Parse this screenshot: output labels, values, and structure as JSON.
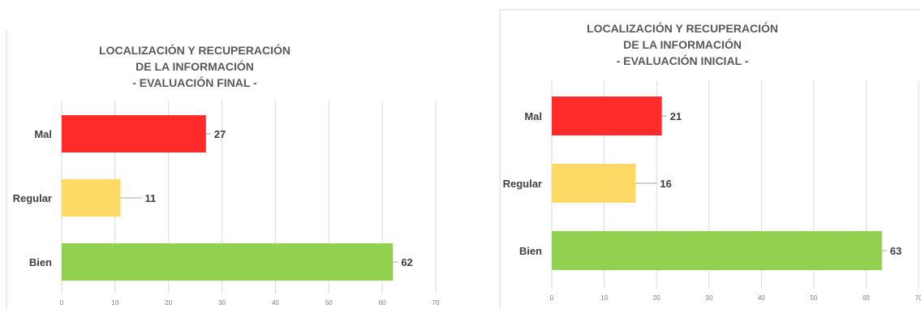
{
  "colors": {
    "mal": "#ff2b2b",
    "regular": "#ffd966",
    "bien": "#92d050"
  },
  "chart_data": [
    {
      "type": "bar",
      "orientation": "horizontal",
      "title": "LOCALIZACIÓN Y RECUPERACIÓN\nDE LA INFORMACIÓN\n- EVALUACIÓN FINAL -",
      "categories": [
        "Mal",
        "Regular",
        "Bien"
      ],
      "values": [
        27,
        11,
        62
      ],
      "xlim": [
        0,
        70
      ],
      "ticks": [
        0,
        10,
        20,
        30,
        40,
        50,
        60,
        70
      ],
      "grid": true,
      "data_labels": true
    },
    {
      "type": "bar",
      "orientation": "horizontal",
      "title": "LOCALIZACIÓN Y RECUPERACIÓN\nDE LA INFORMACIÓN\n- EVALUACIÓN INICIAL -",
      "categories": [
        "Mal",
        "Regular",
        "Bien"
      ],
      "values": [
        21,
        16,
        63
      ],
      "xlim": [
        0,
        70
      ],
      "ticks": [
        0,
        10,
        20,
        30,
        40,
        50,
        60,
        70
      ],
      "grid": true,
      "data_labels": true
    }
  ]
}
